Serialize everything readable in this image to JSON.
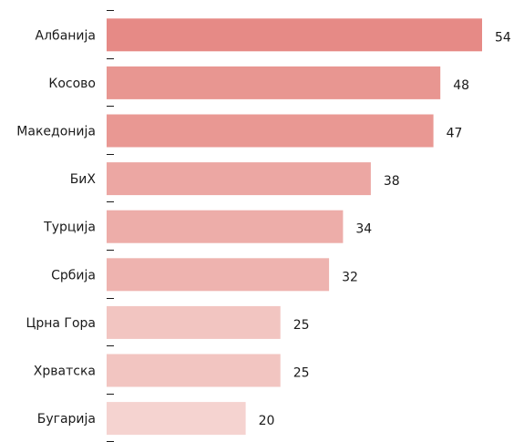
{
  "chart_data": {
    "type": "bar",
    "orientation": "horizontal",
    "title": "",
    "xlabel": "",
    "ylabel": "",
    "categories": [
      "Албанија",
      "Косово",
      "Македонија",
      "БиХ",
      "Турција",
      "Србија",
      "Црна Гора",
      "Хрватска",
      "Бугарија"
    ],
    "values": [
      54,
      48,
      47,
      38,
      34,
      32,
      25,
      25,
      20
    ],
    "xlim": [
      0,
      54
    ],
    "grid": false,
    "legend": "none",
    "bar_colors": [
      "#e68a86",
      "#e89691",
      "#e99893",
      "#eca7a3",
      "#edada9",
      "#eeb3af",
      "#f2c5c1",
      "#f2c5c1",
      "#f5d3d0"
    ]
  }
}
